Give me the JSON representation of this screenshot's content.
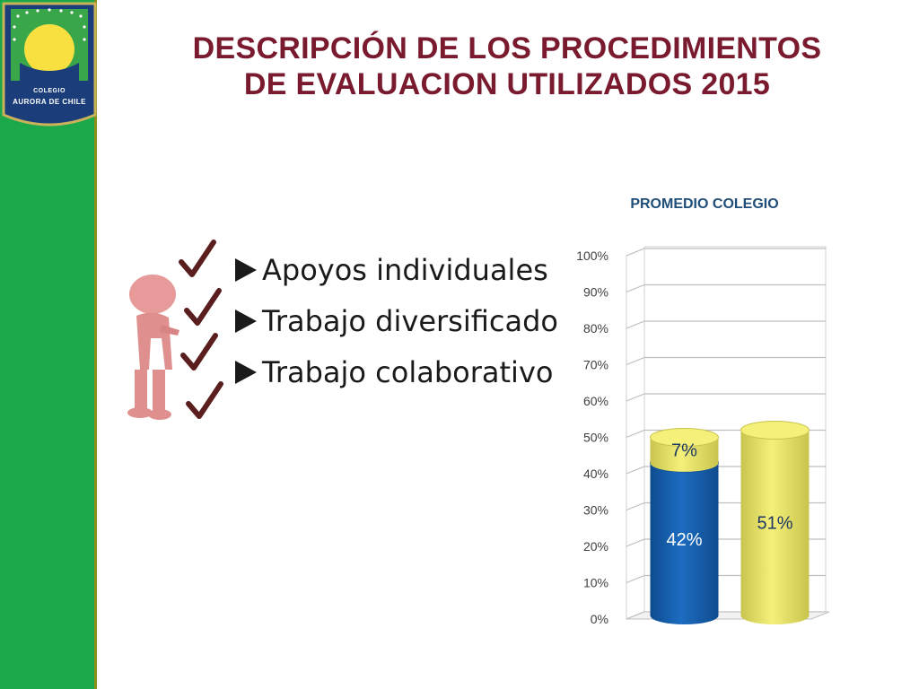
{
  "slide": {
    "title_line1": "DESCRIPCIÓN DE LOS PROCEDIMIENTOS",
    "title_line2": "DE EVALUACION UTILIZADOS 2015"
  },
  "logo": {
    "line1": "COLEGIO",
    "line2": "AURORA DE CHILE"
  },
  "list_items": [
    "Apoyos individuales",
    "Trabajo diversificado",
    "Trabajo colaborativo"
  ],
  "colors": {
    "title": "#7a1a2e",
    "sidebar": "#1aa84b",
    "bar_blue": "#1c6cc0",
    "bar_yellow": "#f4f07a",
    "chart_title": "#1f4e79"
  },
  "chart_data": {
    "type": "bar",
    "title": "PROMEDIO COLEGIO",
    "stacked": true,
    "three_d": true,
    "ylim": [
      0,
      100
    ],
    "y_ticks": [
      "0%",
      "10%",
      "20%",
      "30%",
      "40%",
      "50%",
      "60%",
      "70%",
      "80%",
      "90%",
      "100%"
    ],
    "bars": [
      {
        "segments": [
          {
            "value": 42,
            "label": "42%",
            "color": "#1c6cc0"
          },
          {
            "value": 7,
            "label": "7%",
            "color": "#f4f07a"
          }
        ]
      },
      {
        "segments": [
          {
            "value": 51,
            "label": "51%",
            "color": "#f4f07a"
          }
        ]
      }
    ],
    "grid": true,
    "legend": "none"
  }
}
